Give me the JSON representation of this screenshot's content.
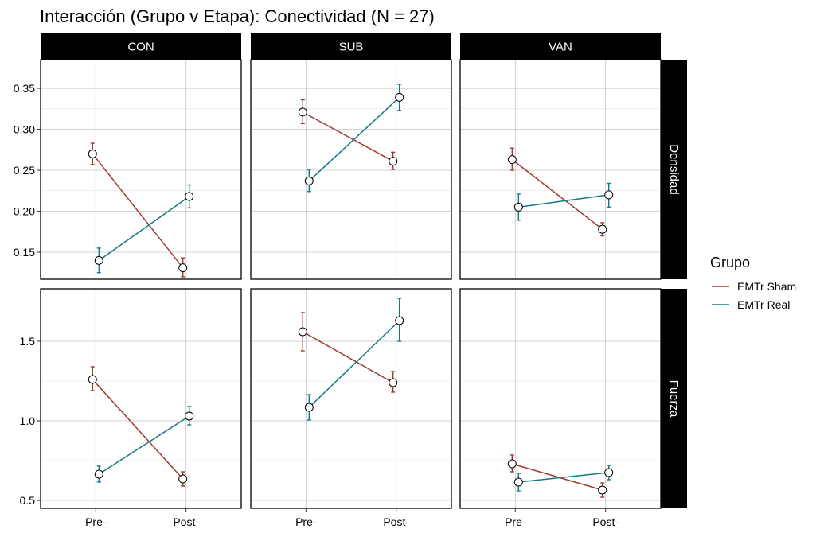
{
  "chart_data": {
    "type": "line",
    "title": "Interacción (Grupo v Etapa): Conectividad (N = 27)",
    "x_categories": [
      "Pre-",
      "Post-"
    ],
    "facet_columns": [
      "CON",
      "SUB",
      "VAN"
    ],
    "facet_rows": [
      {
        "label": "Densidad",
        "ylim": [
          0.117,
          0.385
        ],
        "ticks": [
          0.15,
          0.2,
          0.25,
          0.3,
          0.35
        ],
        "tick_labels": [
          "0.15",
          "0.20",
          "0.25",
          "0.30",
          "0.35"
        ]
      },
      {
        "label": "Fuerza",
        "ylim": [
          0.45,
          1.83
        ],
        "ticks": [
          0.5,
          1.0,
          1.5
        ],
        "tick_labels": [
          "0.5",
          "1.0",
          "1.5"
        ]
      }
    ],
    "legend": {
      "title": "Grupo",
      "placement": "right",
      "entries": [
        {
          "name": "EMTr Sham",
          "color": "#9e3a2e"
        },
        {
          "name": "EMTr Real",
          "color": "#117a85"
        }
      ]
    },
    "grid": true,
    "panels": [
      {
        "row": "Densidad",
        "col": "CON",
        "series": [
          {
            "name": "EMTr Sham",
            "values": [
              0.27,
              0.131
            ],
            "err_low": [
              0.257,
              0.12
            ],
            "err_high": [
              0.283,
              0.143
            ]
          },
          {
            "name": "EMTr Real",
            "values": [
              0.14,
              0.218
            ],
            "err_low": [
              0.125,
              0.204
            ],
            "err_high": [
              0.155,
              0.232
            ]
          }
        ]
      },
      {
        "row": "Densidad",
        "col": "SUB",
        "series": [
          {
            "name": "EMTr Sham",
            "values": [
              0.321,
              0.261
            ],
            "err_low": [
              0.307,
              0.251
            ],
            "err_high": [
              0.336,
              0.272
            ]
          },
          {
            "name": "EMTr Real",
            "values": [
              0.237,
              0.339
            ],
            "err_low": [
              0.224,
              0.323
            ],
            "err_high": [
              0.251,
              0.355
            ]
          }
        ]
      },
      {
        "row": "Densidad",
        "col": "VAN",
        "series": [
          {
            "name": "EMTr Sham",
            "values": [
              0.263,
              0.178
            ],
            "err_low": [
              0.25,
              0.17
            ],
            "err_high": [
              0.277,
              0.186
            ]
          },
          {
            "name": "EMTr Real",
            "values": [
              0.205,
              0.22
            ],
            "err_low": [
              0.189,
              0.205
            ],
            "err_high": [
              0.221,
              0.234
            ]
          }
        ]
      },
      {
        "row": "Fuerza",
        "col": "CON",
        "series": [
          {
            "name": "EMTr Sham",
            "values": [
              1.26,
              0.635
            ],
            "err_low": [
              1.19,
              0.59
            ],
            "err_high": [
              1.34,
              0.68
            ]
          },
          {
            "name": "EMTr Real",
            "values": [
              0.665,
              1.03
            ],
            "err_low": [
              0.615,
              0.975
            ],
            "err_high": [
              0.715,
              1.09
            ]
          }
        ]
      },
      {
        "row": "Fuerza",
        "col": "SUB",
        "series": [
          {
            "name": "EMTr Sham",
            "values": [
              1.56,
              1.24
            ],
            "err_low": [
              1.44,
              1.18
            ],
            "err_high": [
              1.68,
              1.31
            ]
          },
          {
            "name": "EMTr Real",
            "values": [
              1.085,
              1.63
            ],
            "err_low": [
              1.005,
              1.5
            ],
            "err_high": [
              1.165,
              1.77
            ]
          }
        ]
      },
      {
        "row": "Fuerza",
        "col": "VAN",
        "series": [
          {
            "name": "EMTr Sham",
            "values": [
              0.73,
              0.565
            ],
            "err_low": [
              0.68,
              0.52
            ],
            "err_high": [
              0.785,
              0.61
            ]
          },
          {
            "name": "EMTr Real",
            "values": [
              0.615,
              0.675
            ],
            "err_low": [
              0.56,
              0.63
            ],
            "err_high": [
              0.67,
              0.72
            ]
          }
        ]
      }
    ]
  }
}
